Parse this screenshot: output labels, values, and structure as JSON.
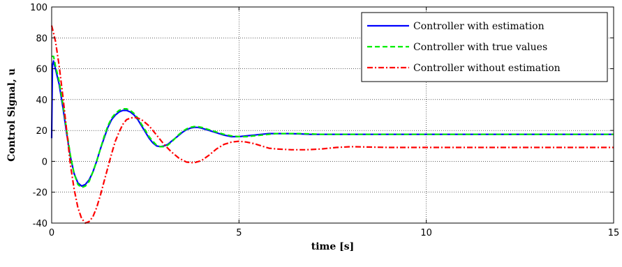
{
  "chart_data": {
    "type": "line",
    "xlabel": "time [s]",
    "ylabel": "Control  Signal, u",
    "xlim": [
      0,
      15
    ],
    "ylim": [
      -40,
      100
    ],
    "xticks": [
      0,
      5,
      10,
      15
    ],
    "yticks": [
      -40,
      -20,
      0,
      20,
      40,
      60,
      80,
      100
    ],
    "grid": true,
    "legend_position": "top-right",
    "series": [
      {
        "name": "Controller with estimation",
        "color": "#0000ff",
        "style": "solid",
        "x": [
          0,
          0.02,
          0.05,
          0.1,
          0.2,
          0.3,
          0.4,
          0.5,
          0.6,
          0.7,
          0.8,
          0.9,
          1.0,
          1.1,
          1.2,
          1.3,
          1.4,
          1.5,
          1.6,
          1.7,
          1.8,
          1.9,
          2.0,
          2.1,
          2.2,
          2.3,
          2.4,
          2.5,
          2.6,
          2.7,
          2.8,
          2.9,
          3.0,
          3.1,
          3.2,
          3.3,
          3.4,
          3.5,
          3.6,
          3.7,
          3.8,
          3.9,
          4.0,
          4.2,
          4.4,
          4.6,
          4.8,
          5.0,
          5.2,
          5.4,
          5.6,
          5.8,
          6.0,
          6.3,
          6.6,
          6.9,
          7.2,
          7.5,
          7.8,
          8.0,
          9.0,
          10.0,
          11.0,
          12.0,
          13.0,
          14.0,
          15.0
        ],
        "values": [
          15,
          62,
          65,
          60,
          50,
          35,
          18,
          3,
          -8,
          -14,
          -16,
          -15,
          -12,
          -7,
          0,
          8,
          15,
          22,
          27,
          30,
          32,
          33,
          33,
          32,
          30,
          27,
          23,
          19,
          15,
          12,
          10,
          9.5,
          10,
          11,
          13,
          15,
          17,
          19,
          20.5,
          21.5,
          22,
          22,
          21.5,
          20,
          18.5,
          17,
          16,
          16,
          16.5,
          17,
          17.5,
          18,
          18,
          18,
          17.8,
          17.5,
          17.5,
          17.5,
          17.5,
          17.5,
          17.5,
          17.5,
          17.5,
          17.5,
          17.5,
          17.5,
          17.5
        ]
      },
      {
        "name": "Controller with true values",
        "color": "#00ee00",
        "style": "dashed",
        "x": [
          0,
          0.05,
          0.1,
          0.2,
          0.3,
          0.4,
          0.5,
          0.6,
          0.7,
          0.8,
          0.9,
          1.0,
          1.1,
          1.2,
          1.3,
          1.4,
          1.5,
          1.6,
          1.7,
          1.8,
          1.9,
          2.0,
          2.1,
          2.2,
          2.3,
          2.4,
          2.5,
          2.6,
          2.7,
          2.8,
          2.9,
          3.0,
          3.1,
          3.2,
          3.3,
          3.4,
          3.5,
          3.6,
          3.7,
          3.8,
          3.9,
          4.0,
          4.2,
          4.4,
          4.6,
          4.8,
          5.0,
          5.2,
          5.4,
          5.6,
          5.8,
          6.0,
          6.3,
          6.6,
          6.9,
          7.2,
          7.5,
          7.8,
          8.0,
          9.0,
          10.0,
          11.0,
          12.0,
          13.0,
          14.0,
          15.0
        ],
        "values": [
          68,
          68,
          62,
          52,
          37,
          20,
          4,
          -8,
          -15,
          -17,
          -16,
          -13,
          -7,
          0,
          8,
          16,
          23,
          28,
          31,
          33,
          34,
          34,
          33,
          31,
          28,
          24,
          20,
          16,
          13,
          10.5,
          9.5,
          9.5,
          10.5,
          12.5,
          15,
          17.5,
          19.5,
          21,
          22,
          22.5,
          22.5,
          22,
          20.5,
          19,
          17.5,
          16.5,
          16,
          16,
          16.5,
          17,
          17.5,
          18,
          18,
          18,
          17.8,
          17.5,
          17.5,
          17.5,
          17.5,
          17.5,
          17.5,
          17.5,
          17.5,
          17.5,
          17.5,
          17.5
        ]
      },
      {
        "name": "Controller without estimation",
        "color": "#ff0000",
        "style": "dashdot",
        "x": [
          0,
          0.1,
          0.2,
          0.3,
          0.4,
          0.5,
          0.6,
          0.7,
          0.8,
          0.9,
          1.0,
          1.1,
          1.2,
          1.3,
          1.4,
          1.5,
          1.6,
          1.7,
          1.8,
          1.9,
          2.0,
          2.1,
          2.2,
          2.3,
          2.4,
          2.5,
          2.6,
          2.7,
          2.8,
          2.9,
          3.0,
          3.2,
          3.4,
          3.6,
          3.8,
          4.0,
          4.2,
          4.4,
          4.6,
          4.8,
          5.0,
          5.2,
          5.4,
          5.6,
          5.8,
          6.0,
          6.4,
          6.8,
          7.2,
          7.6,
          8.0,
          9.0,
          10.0,
          11.0,
          12.0,
          13.0,
          14.0,
          15.0
        ],
        "values": [
          88,
          78,
          62,
          42,
          20,
          -2,
          -18,
          -30,
          -37,
          -40,
          -39,
          -36,
          -30,
          -22,
          -13,
          -4,
          5,
          13,
          19,
          24,
          27,
          28,
          28.5,
          28,
          27,
          25,
          23,
          20,
          17,
          14,
          11,
          6,
          2,
          -0.5,
          -1,
          0.5,
          4,
          8,
          11,
          12.5,
          13,
          12.5,
          11.5,
          10,
          8.5,
          8,
          7.5,
          7.5,
          8,
          9,
          9.5,
          9,
          9,
          9,
          9,
          9,
          9,
          9
        ]
      }
    ]
  }
}
